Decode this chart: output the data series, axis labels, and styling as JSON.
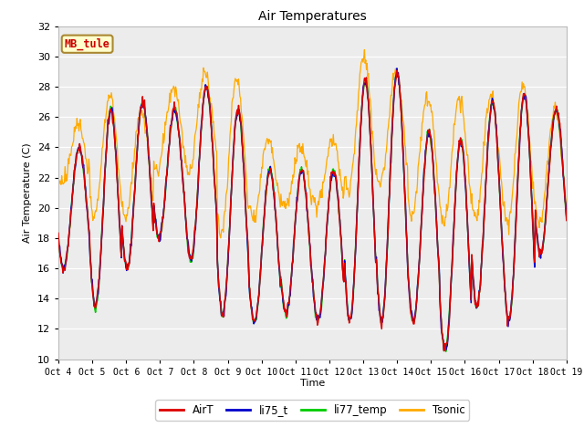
{
  "title": "Air Temperatures",
  "ylabel": "Air Temperature (C)",
  "xlabel": "Time",
  "annotation_text": "MB_tule",
  "annotation_bg": "#ffffcc",
  "annotation_border": "#aa8833",
  "annotation_text_color": "#cc0000",
  "ylim": [
    10,
    32
  ],
  "bg_outer_color": "#ffffff",
  "bg_plot_color": "#ececec",
  "legend_labels": [
    "AirT",
    "li75_t",
    "li77_temp",
    "Tsonic"
  ],
  "legend_colors": [
    "#dd0000",
    "#0000cc",
    "#00cc00",
    "#ffaa00"
  ],
  "xtick_labels": [
    "Oct 4",
    "Oct 5",
    "Oct 6",
    "Oct 7",
    "Oct 8",
    "Oct 9",
    "Oct 10",
    "Oct 11",
    "Oct 12",
    "Oct 13",
    "Oct 14",
    "Oct 15",
    "Oct 16",
    "Oct 17",
    "Oct 18",
    "Oct 19"
  ],
  "num_days": 16,
  "ppd": 48
}
